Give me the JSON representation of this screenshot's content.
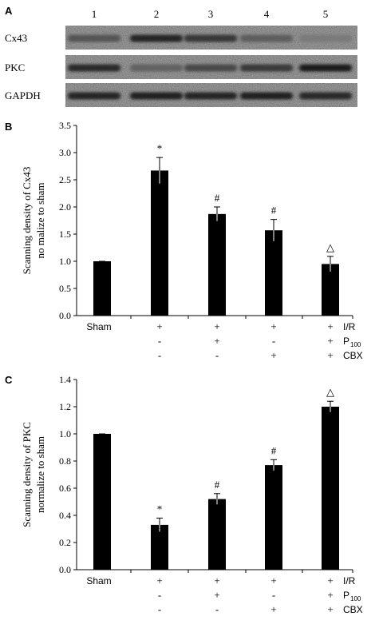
{
  "panel_a": {
    "letter": "A",
    "lanes": [
      "1",
      "2",
      "3",
      "4",
      "5"
    ],
    "rows": [
      {
        "label": "Cx43",
        "intensity": [
          0.62,
          0.88,
          0.78,
          0.58,
          0.42
        ]
      },
      {
        "label": "PKC",
        "intensity": [
          0.85,
          0.55,
          0.68,
          0.76,
          0.92
        ]
      },
      {
        "label": "GAPDH",
        "intensity": [
          0.88,
          0.9,
          0.88,
          0.9,
          0.86
        ]
      }
    ]
  },
  "chart_data": [
    {
      "panel": "B",
      "type": "bar",
      "ylabel_line1": "Scanning density of Cx43",
      "ylabel_line2": "no malize to sham",
      "ylim": [
        0,
        3.5
      ],
      "yticks": [
        "0.0",
        "0.5",
        "1.0",
        "1.5",
        "2.0",
        "2.5",
        "3.0",
        "3.5"
      ],
      "values": [
        1.0,
        2.67,
        1.87,
        1.57,
        0.95
      ],
      "errors": [
        0.0,
        0.24,
        0.13,
        0.2,
        0.14
      ],
      "markers": [
        "",
        "*",
        "#",
        "#",
        "△"
      ],
      "condition_rows": [
        {
          "label": "I/R",
          "cells": [
            "Sham",
            "+",
            "+",
            "+",
            "+"
          ]
        },
        {
          "label": "P",
          "subscript": "100",
          "cells": [
            "",
            "-",
            "+",
            "-",
            "+"
          ]
        },
        {
          "label": "CBX",
          "cells": [
            "",
            "-",
            "-",
            "+",
            "+"
          ]
        }
      ]
    },
    {
      "panel": "C",
      "type": "bar",
      "ylabel_line1": "Scanning density of PKC",
      "ylabel_line2": "normalize to sham",
      "ylim": [
        0,
        1.4
      ],
      "yticks": [
        "0.0",
        "0.2",
        "0.4",
        "0.6",
        "0.8",
        "1.0",
        "1.2",
        "1.4"
      ],
      "values": [
        1.0,
        0.33,
        0.52,
        0.77,
        1.2
      ],
      "errors": [
        0.0,
        0.05,
        0.04,
        0.04,
        0.04
      ],
      "markers": [
        "",
        "*",
        "#",
        "#",
        "△"
      ],
      "condition_rows": [
        {
          "label": "I/R",
          "cells": [
            "Sham",
            "+",
            "+",
            "+",
            "+"
          ]
        },
        {
          "label": "P",
          "subscript": "100",
          "cells": [
            "",
            "-",
            "+",
            "-",
            "+"
          ]
        },
        {
          "label": "CBX",
          "cells": [
            "",
            "-",
            "-",
            "+",
            "+"
          ]
        }
      ]
    }
  ]
}
